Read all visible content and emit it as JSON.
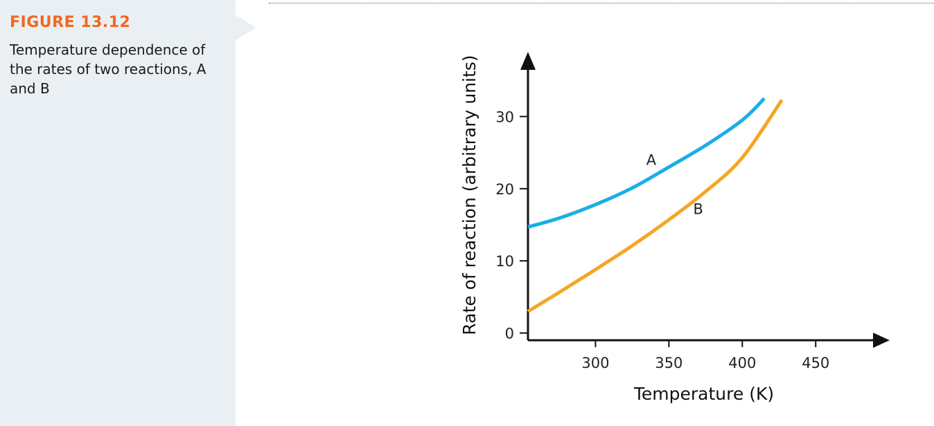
{
  "caption": {
    "figure_label": "FIGURE 13.12",
    "text": "Temperature dependence of the rates of two reactions, A and B"
  },
  "chart_data": {
    "type": "line",
    "title": "",
    "xlabel": "Temperature (K)",
    "ylabel": "Rate of reaction (arbitrary units)",
    "xlim": [
      254,
      490
    ],
    "ylim": [
      -1,
      38
    ],
    "x_ticks": [
      300,
      350,
      400,
      450
    ],
    "y_ticks": [
      0,
      10,
      20,
      30
    ],
    "grid": false,
    "legend": "none",
    "series": [
      {
        "name": "A",
        "color": "#1aaee6",
        "points": [
          [
            254,
            14.7
          ],
          [
            275,
            15.9
          ],
          [
            300,
            17.8
          ],
          [
            325,
            20.1
          ],
          [
            350,
            23.0
          ],
          [
            375,
            26.0
          ],
          [
            400,
            29.5
          ],
          [
            415,
            32.5
          ]
        ]
      },
      {
        "name": "B",
        "color": "#f5a623",
        "points": [
          [
            254,
            3.0
          ],
          [
            275,
            5.6
          ],
          [
            300,
            8.8
          ],
          [
            325,
            12.1
          ],
          [
            350,
            15.7
          ],
          [
            375,
            19.6
          ],
          [
            400,
            24.3
          ],
          [
            427,
            32.3
          ]
        ]
      }
    ],
    "annotations": [
      {
        "text": "A",
        "x": 338,
        "y": 23.3
      },
      {
        "text": "B",
        "x": 370,
        "y": 16.5
      }
    ]
  }
}
